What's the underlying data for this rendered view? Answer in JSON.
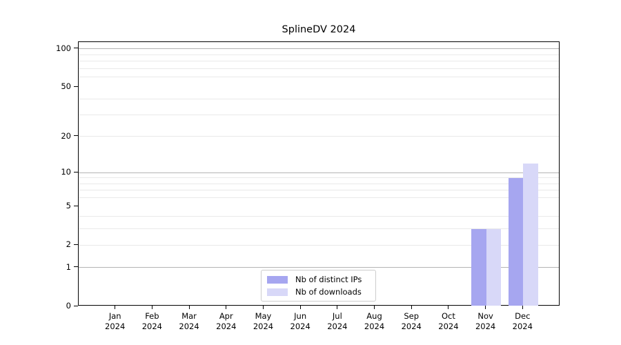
{
  "title": {
    "text": "SplineDV 2024"
  },
  "chart_data": {
    "type": "bar",
    "title": "SplineDV 2024",
    "x_months": [
      "Jan",
      "Feb",
      "Mar",
      "Apr",
      "May",
      "Jun",
      "Jul",
      "Aug",
      "Sep",
      "Oct",
      "Nov",
      "Dec"
    ],
    "x_year": "2024",
    "categories": [
      "Jan 2024",
      "Feb 2024",
      "Mar 2024",
      "Apr 2024",
      "May 2024",
      "Jun 2024",
      "Jul 2024",
      "Aug 2024",
      "Sep 2024",
      "Oct 2024",
      "Nov 2024",
      "Dec 2024"
    ],
    "series": [
      {
        "name": "Nb of distinct IPs",
        "color": "#a6a6f0",
        "values": [
          0,
          0,
          0,
          0,
          0,
          0,
          0,
          0,
          0,
          0,
          3,
          9
        ]
      },
      {
        "name": "Nb of downloads",
        "color": "#d8d8f8",
        "values": [
          0,
          0,
          0,
          0,
          0,
          0,
          0,
          0,
          0,
          0,
          3,
          12
        ]
      }
    ],
    "yscale": "log1p",
    "ylim": [
      0,
      113
    ],
    "y_tick_values": [
      0,
      1,
      2,
      5,
      10,
      20,
      50,
      100
    ],
    "y_major_gridlines": [
      1,
      10,
      100
    ],
    "y_minor_gridlines": [
      2,
      3,
      4,
      6,
      7,
      8,
      9,
      20,
      30,
      40,
      60,
      70,
      80,
      90
    ],
    "grid": "on",
    "legend_position": "lower center",
    "xlabel": "",
    "ylabel": ""
  },
  "legend": {
    "entries": [
      {
        "label": "Nb of distinct IPs",
        "color": "#a6a6f0"
      },
      {
        "label": "Nb of downloads",
        "color": "#d8d8f8"
      }
    ]
  },
  "colors": {
    "axis": "#000000",
    "text": "#000000",
    "grid_major": "#b3b3b3",
    "grid_minor": "#e9e9e9",
    "legend_border": "#cccccc",
    "background": "#ffffff"
  }
}
